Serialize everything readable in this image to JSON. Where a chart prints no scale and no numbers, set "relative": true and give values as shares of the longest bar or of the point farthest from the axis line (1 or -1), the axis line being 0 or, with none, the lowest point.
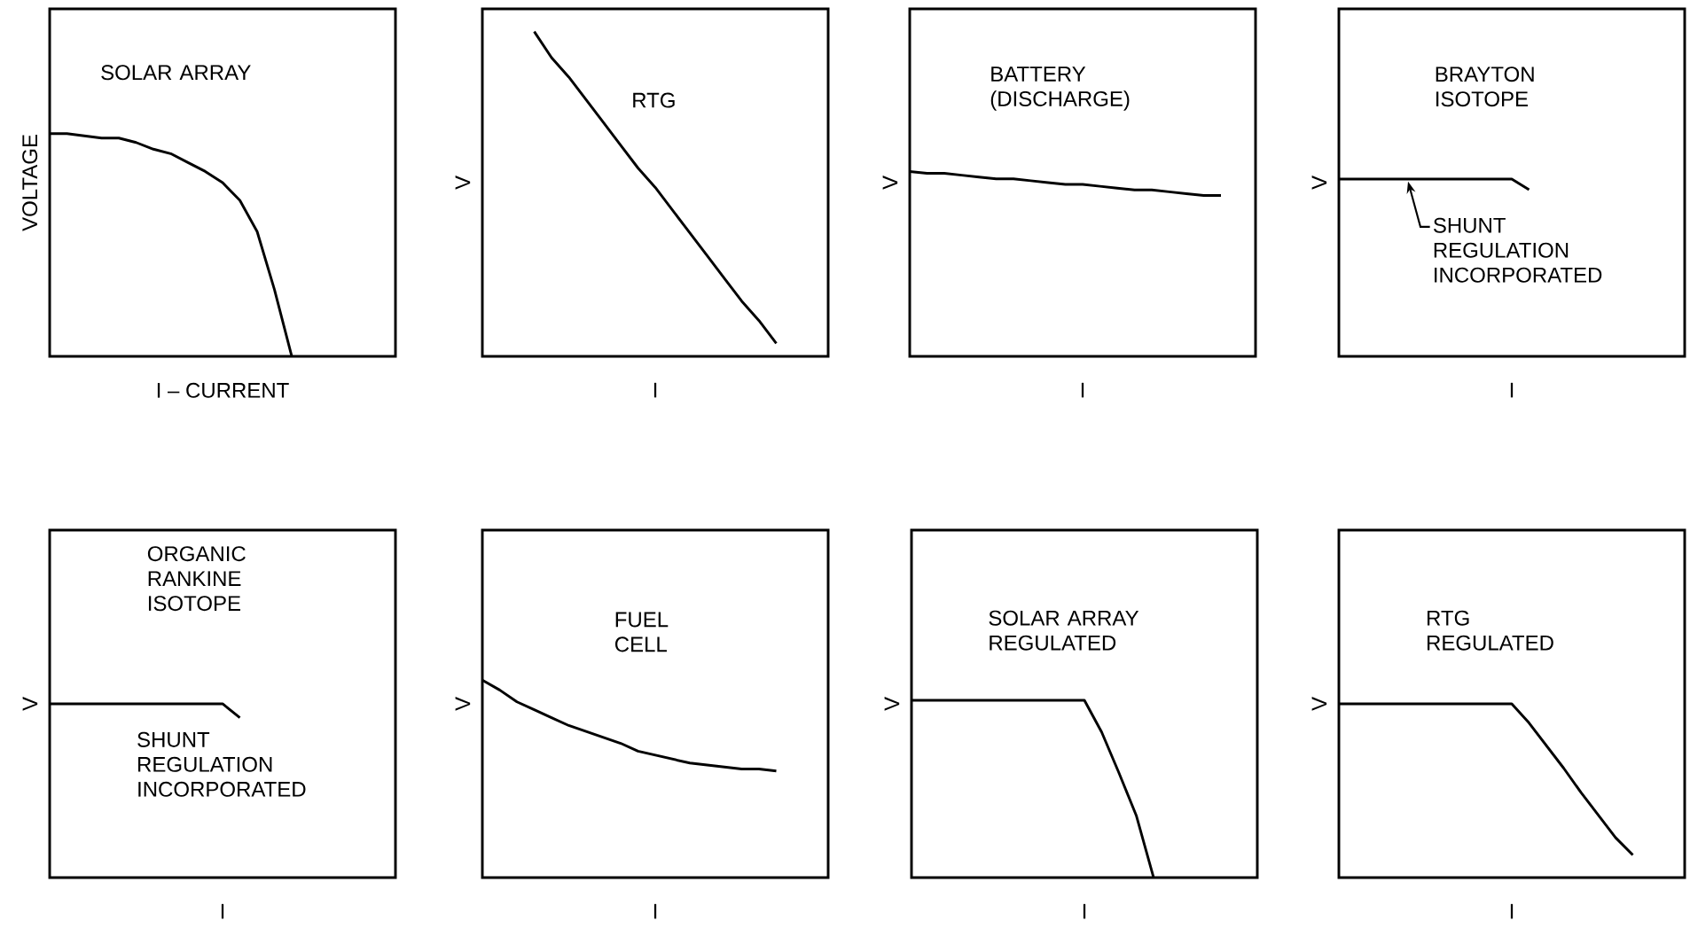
{
  "chart_data": [
    {
      "type": "line",
      "title": "SOLAR ARRAY",
      "xlabel": "I – CURRENT",
      "ylabel": "VOLTAGE",
      "relative": true,
      "categories": [
        null,
        null,
        null,
        null,
        null,
        null,
        null,
        null,
        null,
        null,
        null,
        null,
        null,
        null,
        null,
        null,
        null,
        null,
        null,
        null,
        null
      ],
      "series": [
        {
          "color": "#000000",
          "values": [
            1.0,
            1.0,
            0.99,
            0.98,
            0.98,
            0.96,
            0.93,
            0.91,
            0.87,
            0.83,
            0.78,
            0.7,
            0.56,
            0.3,
            0,
            null,
            null,
            null,
            null,
            null,
            null
          ]
        }
      ]
    },
    {
      "type": "line",
      "title": "RTG",
      "xlabel": "I",
      "ylabel": "V",
      "relative": true,
      "categories": [
        null,
        null,
        null,
        null,
        null,
        null,
        null,
        null,
        null,
        null,
        null,
        null,
        null,
        null,
        null
      ],
      "series": [
        {
          "color": "#000000",
          "values": [
            1.0,
            0.92,
            0.86,
            0.79,
            0.72,
            0.65,
            0.58,
            0.52,
            0.45,
            0.38,
            0.31,
            0.24,
            0.17,
            0.11,
            0.04
          ]
        }
      ]
    },
    {
      "type": "line",
      "title": "BATTERY (DISCHARGE)",
      "xlabel": "I",
      "ylabel": "V",
      "relative": true,
      "categories": [
        null,
        null,
        null,
        null,
        null,
        null,
        null,
        null,
        null,
        null,
        null,
        null,
        null,
        null,
        null,
        null,
        null,
        null,
        null,
        null,
        null
      ],
      "series": [
        {
          "color": "#000000",
          "values": [
            1.0,
            0.99,
            0.99,
            0.98,
            0.97,
            0.96,
            0.96,
            0.95,
            0.94,
            0.93,
            0.93,
            0.92,
            0.91,
            0.9,
            0.9,
            0.89,
            0.88,
            0.87,
            0.87,
            null,
            null
          ]
        }
      ]
    },
    {
      "type": "line",
      "title": "BRAYTON ISOTOPE",
      "xlabel": "I",
      "ylabel": "V",
      "relative": true,
      "categories": [
        null,
        null,
        null,
        null,
        null,
        null,
        null,
        null,
        null,
        null,
        null,
        null,
        null,
        null,
        null,
        null,
        null,
        null,
        null,
        null,
        null
      ],
      "series": [
        {
          "color": "#000000",
          "values": [
            1,
            1,
            1,
            1,
            1,
            1,
            1,
            1,
            1,
            1,
            1,
            0.94,
            null,
            null,
            null,
            null,
            null,
            null,
            null,
            null,
            null
          ]
        }
      ],
      "annotations": [
        "SHUNT REGULATION INCORPORATED"
      ]
    },
    {
      "type": "line",
      "title": "ORGANIC RANKINE ISOTOPE",
      "xlabel": "I",
      "ylabel": "V",
      "relative": true,
      "categories": [
        null,
        null,
        null,
        null,
        null,
        null,
        null,
        null,
        null,
        null,
        null,
        null,
        null,
        null,
        null,
        null,
        null,
        null,
        null,
        null,
        null
      ],
      "series": [
        {
          "color": "#000000",
          "values": [
            1,
            1,
            1,
            1,
            1,
            1,
            1,
            1,
            1,
            1,
            1,
            0.92,
            null,
            null,
            null,
            null,
            null,
            null,
            null,
            null,
            null
          ]
        }
      ],
      "annotations": [
        "SHUNT REGULATION INCORPORATED"
      ]
    },
    {
      "type": "line",
      "title": "FUEL CELL",
      "xlabel": "I",
      "ylabel": "V",
      "relative": true,
      "categories": [
        null,
        null,
        null,
        null,
        null,
        null,
        null,
        null,
        null,
        null,
        null,
        null,
        null,
        null,
        null,
        null,
        null,
        null,
        null,
        null,
        null
      ],
      "series": [
        {
          "color": "#000000",
          "values": [
            1.0,
            0.95,
            0.89,
            0.85,
            0.81,
            0.77,
            0.74,
            0.71,
            0.68,
            0.64,
            0.62,
            0.6,
            0.58,
            0.57,
            0.56,
            0.55,
            0.55,
            0.54,
            null,
            null,
            null
          ]
        }
      ]
    },
    {
      "type": "line",
      "title": "SOLAR ARRAY REGULATED",
      "xlabel": "I",
      "ylabel": "V",
      "relative": true,
      "categories": [
        null,
        null,
        null,
        null,
        null,
        null,
        null,
        null,
        null,
        null,
        null,
        null,
        null,
        null,
        null,
        null,
        null,
        null,
        null,
        null,
        null
      ],
      "series": [
        {
          "color": "#000000",
          "values": [
            1,
            1,
            1,
            1,
            1,
            1,
            1,
            1,
            1,
            1,
            1,
            0.82,
            0.59,
            0.35,
            0,
            null,
            null,
            null,
            null,
            null,
            null
          ]
        }
      ]
    },
    {
      "type": "line",
      "title": "RTG REGULATED",
      "xlabel": "I",
      "ylabel": "V",
      "relative": true,
      "categories": [
        null,
        null,
        null,
        null,
        null,
        null,
        null,
        null,
        null,
        null,
        null,
        null,
        null,
        null,
        null,
        null,
        null,
        null,
        null,
        null,
        null
      ],
      "series": [
        {
          "color": "#000000",
          "values": [
            1,
            1,
            1,
            1,
            1,
            1,
            1,
            1,
            1,
            1,
            1,
            0.89,
            0.76,
            0.63,
            0.49,
            0.36,
            0.23,
            0.13,
            null,
            null,
            null
          ]
        }
      ]
    }
  ]
}
